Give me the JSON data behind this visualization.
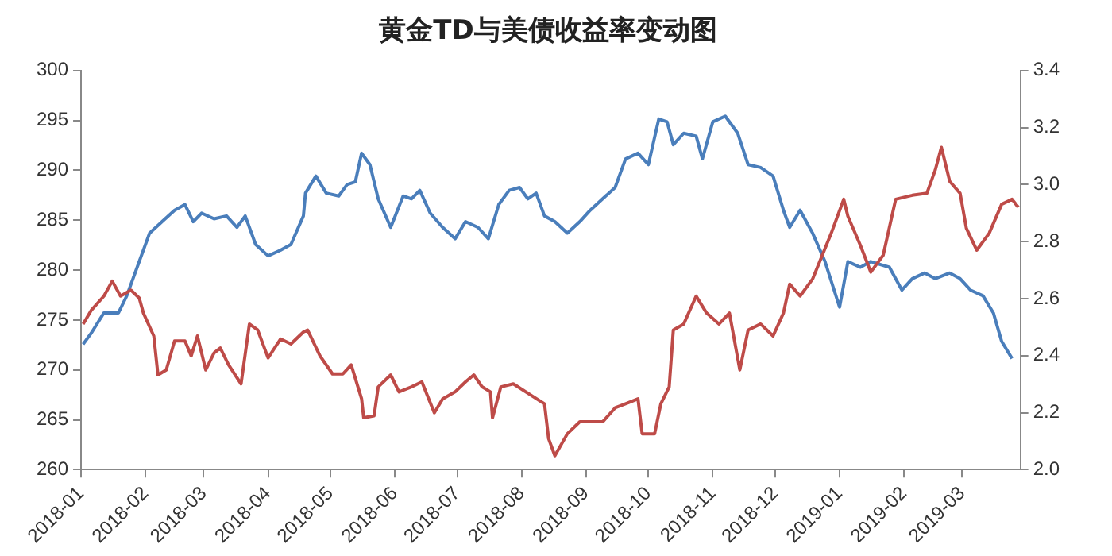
{
  "chart_data": {
    "type": "line",
    "title": "黄金TD与美债收益率变动图",
    "xlim": [
      "2018-01-01",
      "2019-03-29"
    ],
    "xticks": [
      "2018-01",
      "2018-02",
      "2018-03",
      "2018-04",
      "2018-05",
      "2018-06",
      "2018-07",
      "2018-08",
      "2018-09",
      "2018-10",
      "2018-11",
      "2018-12",
      "2019-01",
      "2019-02",
      "2019-03"
    ],
    "ylim": [
      260,
      300
    ],
    "yticks": [
      260,
      265,
      270,
      275,
      280,
      285,
      290,
      295,
      300
    ],
    "y2lim": [
      2.0,
      3.4
    ],
    "y2ticks": [
      {
        "value": 2.0,
        "label": "2.0"
      },
      {
        "value": 2.2,
        "label": "2.2"
      },
      {
        "value": 2.4,
        "label": "2.4"
      },
      {
        "value": 2.6,
        "label": "2.6"
      },
      {
        "value": 2.8,
        "label": "2.8"
      },
      {
        "value": 3.0,
        "label": "3.0"
      },
      {
        "value": 3.2,
        "label": "3.2"
      },
      {
        "value": 3.4,
        "label": "3.4"
      }
    ],
    "grid": false,
    "legend": false,
    "marker": "none",
    "line_style": "solid",
    "series": [
      {
        "color": "#be4b48",
        "x": [
          "2018-01-02",
          "2018-01-06",
          "2018-01-12",
          "2018-01-16",
          "2018-01-20",
          "2018-01-25",
          "2018-01-29",
          "2018-01-31",
          "2018-02-05",
          "2018-02-07",
          "2018-02-11",
          "2018-02-15",
          "2018-02-20",
          "2018-02-23",
          "2018-02-26",
          "2018-03-02",
          "2018-03-06",
          "2018-03-09",
          "2018-03-13",
          "2018-03-19",
          "2018-03-23",
          "2018-03-27",
          "2018-04-01",
          "2018-04-07",
          "2018-04-12",
          "2018-04-18",
          "2018-04-20",
          "2018-04-26",
          "2018-05-02",
          "2018-05-07",
          "2018-05-11",
          "2018-05-16",
          "2018-05-17",
          "2018-05-22",
          "2018-05-24",
          "2018-05-30",
          "2018-06-03",
          "2018-06-09",
          "2018-06-14",
          "2018-06-20",
          "2018-06-24",
          "2018-06-30",
          "2018-07-05",
          "2018-07-09",
          "2018-07-13",
          "2018-07-17",
          "2018-07-18",
          "2018-07-22",
          "2018-07-28",
          "2018-08-06",
          "2018-08-12",
          "2018-08-14",
          "2018-08-17",
          "2018-08-23",
          "2018-08-29",
          "2018-09-09",
          "2018-09-15",
          "2018-09-20",
          "2018-09-26",
          "2018-09-28",
          "2018-10-04",
          "2018-10-07",
          "2018-10-11",
          "2018-10-13",
          "2018-10-18",
          "2018-10-24",
          "2018-10-29",
          "2018-11-04",
          "2018-11-09",
          "2018-11-14",
          "2018-11-18",
          "2018-11-24",
          "2018-11-30",
          "2018-12-05",
          "2018-12-08",
          "2018-12-13",
          "2018-12-19",
          "2018-12-28",
          "2019-01-03",
          "2019-01-05",
          "2019-01-11",
          "2019-01-16",
          "2019-01-22",
          "2019-01-28",
          "2019-02-05",
          "2019-02-12",
          "2019-02-16",
          "2019-02-19",
          "2019-02-23",
          "2019-02-28",
          "2019-03-03",
          "2019-03-08",
          "2019-03-14",
          "2019-03-20",
          "2019-03-25",
          "2019-03-28"
        ],
        "values": [
          274.6,
          276,
          277.4,
          278.9,
          277.4,
          278,
          277.2,
          275.7,
          273.4,
          269.5,
          270,
          272.9,
          272.9,
          271.4,
          273.4,
          270,
          271.7,
          272.2,
          270.5,
          268.6,
          274.6,
          274,
          271.2,
          273.1,
          272.6,
          273.8,
          274,
          271.4,
          269.6,
          269.6,
          270.5,
          267.1,
          265.2,
          265.4,
          268.3,
          269.5,
          267.8,
          268.3,
          268.8,
          265.7,
          267.1,
          267.8,
          268.8,
          269.5,
          268.3,
          267.8,
          265.2,
          268.3,
          268.6,
          267.4,
          266.6,
          263.1,
          261.4,
          263.6,
          264.8,
          264.8,
          266.2,
          266.6,
          267.1,
          263.6,
          263.6,
          266.6,
          268.3,
          274,
          274.6,
          277.4,
          275.7,
          274.6,
          275.7,
          270,
          274,
          274.6,
          273.4,
          275.7,
          278.6,
          277.4,
          279.1,
          283.7,
          287.1,
          285.4,
          282.5,
          279.8,
          281.5,
          287.1,
          287.5,
          287.7,
          290,
          292.3,
          288.9,
          287.7,
          284.2,
          282,
          283.7,
          286.6,
          287.1,
          286.3
        ]
      },
      {
        "color": "#4a7ebb",
        "axis": "y2",
        "x": [
          "2018-01-02",
          "2018-01-06",
          "2018-01-12",
          "2018-01-19",
          "2018-01-23",
          "2018-01-29",
          "2018-02-03",
          "2018-02-09",
          "2018-02-15",
          "2018-02-20",
          "2018-02-24",
          "2018-02-28",
          "2018-03-06",
          "2018-03-12",
          "2018-03-17",
          "2018-03-21",
          "2018-03-26",
          "2018-04-01",
          "2018-04-07",
          "2018-04-12",
          "2018-04-18",
          "2018-04-19",
          "2018-04-24",
          "2018-04-29",
          "2018-05-05",
          "2018-05-09",
          "2018-05-13",
          "2018-05-16",
          "2018-05-20",
          "2018-05-24",
          "2018-05-30",
          "2018-06-05",
          "2018-06-09",
          "2018-06-13",
          "2018-06-18",
          "2018-06-24",
          "2018-06-30",
          "2018-07-05",
          "2018-07-11",
          "2018-07-16",
          "2018-07-21",
          "2018-07-26",
          "2018-07-31",
          "2018-08-04",
          "2018-08-08",
          "2018-08-12",
          "2018-08-17",
          "2018-08-23",
          "2018-08-29",
          "2018-09-03",
          "2018-09-09",
          "2018-09-15",
          "2018-09-20",
          "2018-09-26",
          "2018-10-01",
          "2018-10-06",
          "2018-10-10",
          "2018-10-13",
          "2018-10-18",
          "2018-10-24",
          "2018-10-27",
          "2018-11-01",
          "2018-11-07",
          "2018-11-13",
          "2018-11-18",
          "2018-11-24",
          "2018-11-30",
          "2018-12-05",
          "2018-12-08",
          "2018-12-13",
          "2018-12-19",
          "2018-12-25",
          "2019-01-01",
          "2019-01-05",
          "2019-01-11",
          "2019-01-16",
          "2019-01-25",
          "2019-01-31",
          "2019-02-05",
          "2019-02-11",
          "2019-02-16",
          "2019-02-23",
          "2019-02-28",
          "2019-03-05",
          "2019-03-11",
          "2019-03-16",
          "2019-03-20",
          "2019-03-25"
        ],
        "values": [
          2.44,
          2.48,
          2.55,
          2.55,
          2.61,
          2.73,
          2.83,
          2.87,
          2.91,
          2.93,
          2.87,
          2.9,
          2.88,
          2.89,
          2.85,
          2.89,
          2.79,
          2.75,
          2.77,
          2.79,
          2.89,
          2.97,
          3.03,
          2.97,
          2.96,
          3.0,
          3.01,
          3.11,
          3.07,
          2.95,
          2.85,
          2.96,
          2.95,
          2.98,
          2.9,
          2.85,
          2.81,
          2.87,
          2.85,
          2.81,
          2.93,
          2.98,
          2.99,
          2.95,
          2.97,
          2.89,
          2.87,
          2.83,
          2.87,
          2.91,
          2.95,
          2.99,
          3.09,
          3.11,
          3.07,
          3.23,
          3.22,
          3.14,
          3.18,
          3.17,
          3.09,
          3.22,
          3.24,
          3.18,
          3.07,
          3.06,
          3.03,
          2.91,
          2.85,
          2.91,
          2.83,
          2.73,
          2.57,
          2.73,
          2.71,
          2.73,
          2.71,
          2.63,
          2.67,
          2.69,
          2.67,
          2.69,
          2.67,
          2.63,
          2.61,
          2.55,
          2.45,
          2.39
        ]
      }
    ]
  }
}
